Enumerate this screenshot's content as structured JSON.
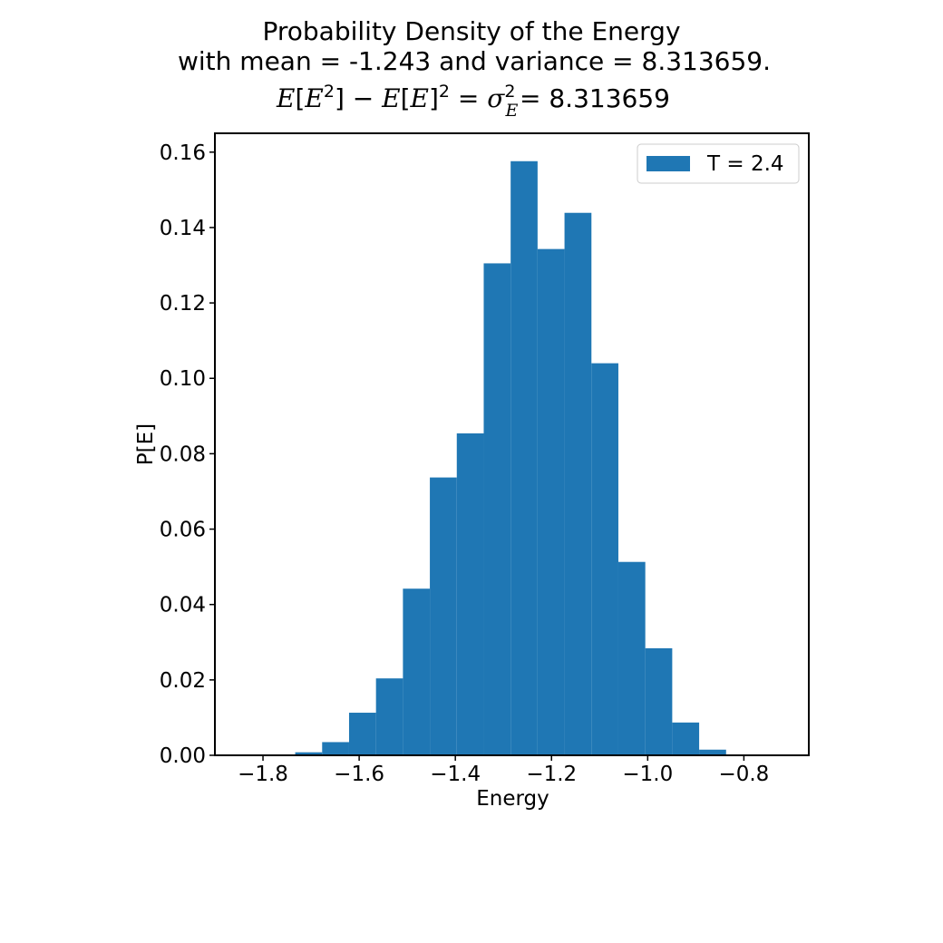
{
  "title": {
    "line1": "Probability Density of the Energy",
    "line2": "with mean = -1.243 and variance = 8.313659.",
    "line3_value": "= 8.313659"
  },
  "chart_data": {
    "type": "bar",
    "subtype": "histogram",
    "xlabel": "Energy",
    "ylabel": "P[E]",
    "xlim": [
      -1.9,
      -0.665
    ],
    "ylim": [
      0.0,
      0.165
    ],
    "xticks": [
      -1.8,
      -1.6,
      -1.4,
      -1.2,
      -1.0,
      -0.8
    ],
    "xtick_labels": [
      "−1.8",
      "−1.6",
      "−1.4",
      "−1.2",
      "−1.0",
      "−0.8"
    ],
    "yticks": [
      0.0,
      0.02,
      0.04,
      0.06,
      0.08,
      0.1,
      0.12,
      0.14,
      0.16
    ],
    "ytick_labels": [
      "0.00",
      "0.02",
      "0.04",
      "0.06",
      "0.08",
      "0.10",
      "0.12",
      "0.14",
      "0.16"
    ],
    "bin_edges": [
      -1.845,
      -1.789,
      -1.733,
      -1.677,
      -1.621,
      -1.565,
      -1.509,
      -1.453,
      -1.397,
      -1.341,
      -1.285,
      -1.229,
      -1.173,
      -1.117,
      -1.061,
      -1.005,
      -0.949,
      -0.893,
      -0.837,
      -0.781
    ],
    "values": [
      0.0,
      0.0,
      0.0008,
      0.0035,
      0.0113,
      0.0204,
      0.0442,
      0.0737,
      0.0854,
      0.1305,
      0.1576,
      0.1343,
      0.1439,
      0.104,
      0.0513,
      0.0284,
      0.0087,
      0.0015,
      0.0
    ],
    "series": [
      {
        "name": "T = 2.4",
        "color": "#1f77b4"
      }
    ],
    "legend": {
      "placement": "upper-right"
    },
    "grid": false
  }
}
